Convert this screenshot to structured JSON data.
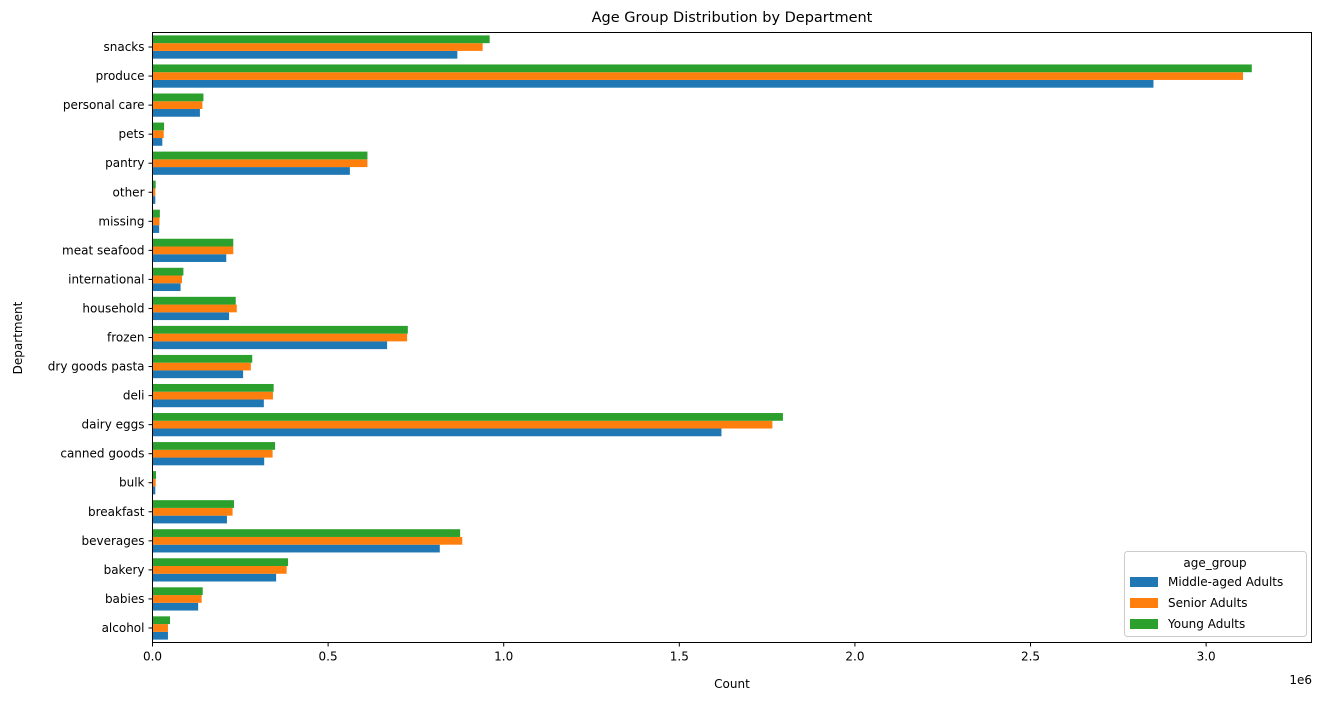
{
  "chart_data": {
    "type": "bar",
    "orientation": "horizontal",
    "title": "Age Group Distribution by Department",
    "xlabel": "Count",
    "ylabel": "Department",
    "x_offset_text": "1e6",
    "xlim": [
      0,
      3300000
    ],
    "x_ticks": [
      0,
      500000,
      1000000,
      1500000,
      2000000,
      2500000,
      3000000
    ],
    "x_tick_labels": [
      "0.0",
      "0.5",
      "1.0",
      "1.5",
      "2.0",
      "2.5",
      "3.0"
    ],
    "grid": false,
    "legend": {
      "title": "age_group",
      "placement": "lower-right"
    },
    "categories": [
      "alcohol",
      "babies",
      "bakery",
      "beverages",
      "breakfast",
      "bulk",
      "canned goods",
      "dairy eggs",
      "deli",
      "dry goods pasta",
      "frozen",
      "household",
      "international",
      "meat seafood",
      "missing",
      "other",
      "pantry",
      "pets",
      "personal care",
      "produce",
      "snacks"
    ],
    "series": [
      {
        "name": "Middle-aged Adults",
        "color": "#1f77b4",
        "values": [
          44000,
          130000,
          352000,
          818000,
          212000,
          8000,
          318000,
          1620000,
          317000,
          258000,
          668000,
          218000,
          80000,
          210000,
          19000,
          8000,
          562000,
          28000,
          135000,
          2850000,
          868000
        ]
      },
      {
        "name": "Senior Adults",
        "color": "#ff7f0e",
        "values": [
          44000,
          140000,
          382000,
          882000,
          228000,
          9000,
          342000,
          1765000,
          343000,
          280000,
          725000,
          240000,
          84000,
          230000,
          20000,
          8000,
          612000,
          32000,
          142000,
          3105000,
          940000
        ]
      },
      {
        "name": "Young Adults",
        "color": "#2ca02c",
        "values": [
          50000,
          143000,
          386000,
          876000,
          232000,
          10000,
          349000,
          1795000,
          345000,
          284000,
          727000,
          237000,
          88000,
          230000,
          21000,
          9000,
          612000,
          33000,
          145000,
          3130000,
          960000
        ]
      }
    ]
  }
}
